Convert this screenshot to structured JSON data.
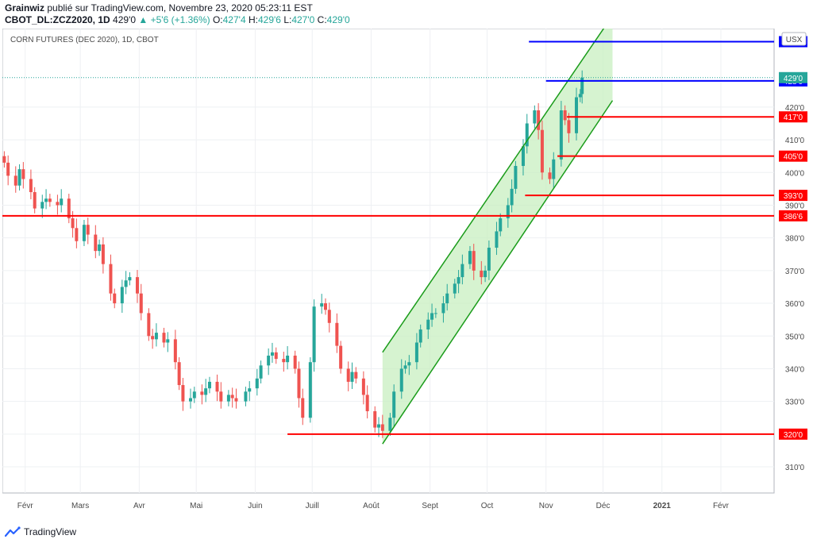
{
  "header": {
    "author": "Grainwiz",
    "published_text": " publié sur TradingView.com, Novembre 23, 2020 05:23:11 EST",
    "symbol": "CBOT_DL:ZCZ2020, 1D",
    "last_price": "429'0",
    "change": "▲ +5'6 (+1.36%)",
    "ohlc": [
      {
        "label": "O:",
        "value": "427'4"
      },
      {
        "label": "H:",
        "value": "429'6"
      },
      {
        "label": "L:",
        "value": "427'0"
      },
      {
        "label": "C:",
        "value": "429'0"
      }
    ]
  },
  "chart_title": "CORN FUTURES (DEC 2020), 1D, CBOT",
  "currency_button": "USX",
  "footer": {
    "brand": "TradingView"
  },
  "colors": {
    "up": "#26a69a",
    "down": "#ef5350",
    "support_line": "#ff0000",
    "resistance_line": "#0000ff",
    "channel_line": "#1a9c1a",
    "channel_fill": "#c8efc0",
    "last_price": "#26a69a",
    "grid": "#eef0f3",
    "axis_text": "#4a4a4a"
  },
  "chart_data": {
    "type": "candlestick",
    "title": "CORN FUTURES (DEC 2020), 1D, CBOT",
    "ylim": [
      302,
      444
    ],
    "y_ticks": [
      "310'0",
      "320'0",
      "330'0",
      "340'0",
      "350'0",
      "360'0",
      "370'0",
      "380'0",
      "390'0",
      "400'0",
      "410'0",
      "420'0"
    ],
    "y_tick_values": [
      310,
      320,
      330,
      340,
      350,
      360,
      370,
      380,
      390,
      400,
      410,
      420
    ],
    "x_axis": {
      "start": "2020-01-20",
      "end": "2021-03-01",
      "months": [
        {
          "label": "Févr",
          "date": "2020-02-01"
        },
        {
          "label": "Mars",
          "date": "2020-03-01"
        },
        {
          "label": "Avr",
          "date": "2020-04-01"
        },
        {
          "label": "Mai",
          "date": "2020-05-01"
        },
        {
          "label": "Juin",
          "date": "2020-06-01"
        },
        {
          "label": "Juill",
          "date": "2020-07-01"
        },
        {
          "label": "Août",
          "date": "2020-08-01"
        },
        {
          "label": "Sept",
          "date": "2020-09-01"
        },
        {
          "label": "Oct",
          "date": "2020-10-01"
        },
        {
          "label": "Nov",
          "date": "2020-11-01"
        },
        {
          "label": "Déc",
          "date": "2020-12-01"
        },
        {
          "label": "2021",
          "date": "2021-01-01",
          "bold": true
        },
        {
          "label": "Févr",
          "date": "2021-02-01"
        }
      ]
    },
    "series": [
      {
        "date": "2020-01-21",
        "close": 403
      },
      {
        "date": "2020-01-23",
        "close": 399
      },
      {
        "date": "2020-01-27",
        "close": 396
      },
      {
        "date": "2020-01-29",
        "close": 401
      },
      {
        "date": "2020-01-31",
        "close": 398
      },
      {
        "date": "2020-02-04",
        "close": 394
      },
      {
        "date": "2020-02-06",
        "close": 389
      },
      {
        "date": "2020-02-10",
        "close": 391
      },
      {
        "date": "2020-02-12",
        "close": 392
      },
      {
        "date": "2020-02-14",
        "close": 391
      },
      {
        "date": "2020-02-18",
        "close": 390
      },
      {
        "date": "2020-02-20",
        "close": 392
      },
      {
        "date": "2020-02-24",
        "close": 386
      },
      {
        "date": "2020-02-26",
        "close": 383
      },
      {
        "date": "2020-02-28",
        "close": 379
      },
      {
        "date": "2020-03-03",
        "close": 384
      },
      {
        "date": "2020-03-05",
        "close": 381
      },
      {
        "date": "2020-03-09",
        "close": 376
      },
      {
        "date": "2020-03-11",
        "close": 378
      },
      {
        "date": "2020-03-13",
        "close": 372
      },
      {
        "date": "2020-03-17",
        "close": 363
      },
      {
        "date": "2020-03-19",
        "close": 360
      },
      {
        "date": "2020-03-23",
        "close": 365
      },
      {
        "date": "2020-03-25",
        "close": 367
      },
      {
        "date": "2020-03-27",
        "close": 368
      },
      {
        "date": "2020-03-31",
        "close": 363
      },
      {
        "date": "2020-04-02",
        "close": 357
      },
      {
        "date": "2020-04-06",
        "close": 350
      },
      {
        "date": "2020-04-08",
        "close": 349
      },
      {
        "date": "2020-04-10",
        "close": 351
      },
      {
        "date": "2020-04-14",
        "close": 348
      },
      {
        "date": "2020-04-16",
        "close": 349
      },
      {
        "date": "2020-04-20",
        "close": 342
      },
      {
        "date": "2020-04-22",
        "close": 335
      },
      {
        "date": "2020-04-24",
        "close": 330
      },
      {
        "date": "2020-04-28",
        "close": 331
      },
      {
        "date": "2020-04-30",
        "close": 333
      },
      {
        "date": "2020-05-04",
        "close": 332
      },
      {
        "date": "2020-05-06",
        "close": 334
      },
      {
        "date": "2020-05-08",
        "close": 336
      },
      {
        "date": "2020-05-12",
        "close": 333
      },
      {
        "date": "2020-05-14",
        "close": 330
      },
      {
        "date": "2020-05-18",
        "close": 332
      },
      {
        "date": "2020-05-20",
        "close": 331
      },
      {
        "date": "2020-05-22",
        "close": 330
      },
      {
        "date": "2020-05-27",
        "close": 333
      },
      {
        "date": "2020-05-29",
        "close": 334
      },
      {
        "date": "2020-06-02",
        "close": 337
      },
      {
        "date": "2020-06-04",
        "close": 341
      },
      {
        "date": "2020-06-08",
        "close": 344
      },
      {
        "date": "2020-06-10",
        "close": 345
      },
      {
        "date": "2020-06-12",
        "close": 343
      },
      {
        "date": "2020-06-16",
        "close": 342
      },
      {
        "date": "2020-06-18",
        "close": 344
      },
      {
        "date": "2020-06-22",
        "close": 340
      },
      {
        "date": "2020-06-24",
        "close": 331
      },
      {
        "date": "2020-06-26",
        "close": 325
      },
      {
        "date": "2020-06-30",
        "close": 342
      },
      {
        "date": "2020-07-02",
        "close": 359
      },
      {
        "date": "2020-07-06",
        "close": 360
      },
      {
        "date": "2020-07-08",
        "close": 358
      },
      {
        "date": "2020-07-10",
        "close": 354
      },
      {
        "date": "2020-07-14",
        "close": 347
      },
      {
        "date": "2020-07-16",
        "close": 340
      },
      {
        "date": "2020-07-20",
        "close": 336
      },
      {
        "date": "2020-07-22",
        "close": 339
      },
      {
        "date": "2020-07-24",
        "close": 337
      },
      {
        "date": "2020-07-28",
        "close": 332
      },
      {
        "date": "2020-07-30",
        "close": 327
      },
      {
        "date": "2020-08-03",
        "close": 322
      },
      {
        "date": "2020-08-05",
        "close": 323
      },
      {
        "date": "2020-08-07",
        "close": 321
      },
      {
        "date": "2020-08-11",
        "close": 325
      },
      {
        "date": "2020-08-13",
        "close": 333
      },
      {
        "date": "2020-08-17",
        "close": 340
      },
      {
        "date": "2020-08-19",
        "close": 341
      },
      {
        "date": "2020-08-21",
        "close": 342
      },
      {
        "date": "2020-08-25",
        "close": 348
      },
      {
        "date": "2020-08-27",
        "close": 352
      },
      {
        "date": "2020-08-31",
        "close": 355
      },
      {
        "date": "2020-09-02",
        "close": 357
      },
      {
        "date": "2020-09-04",
        "close": 357
      },
      {
        "date": "2020-09-08",
        "close": 360
      },
      {
        "date": "2020-09-10",
        "close": 363
      },
      {
        "date": "2020-09-14",
        "close": 366
      },
      {
        "date": "2020-09-16",
        "close": 368
      },
      {
        "date": "2020-09-18",
        "close": 372
      },
      {
        "date": "2020-09-22",
        "close": 376
      },
      {
        "date": "2020-09-24",
        "close": 370
      },
      {
        "date": "2020-09-28",
        "close": 368
      },
      {
        "date": "2020-09-30",
        "close": 370
      },
      {
        "date": "2020-10-02",
        "close": 377
      },
      {
        "date": "2020-10-06",
        "close": 382
      },
      {
        "date": "2020-10-08",
        "close": 386
      },
      {
        "date": "2020-10-12",
        "close": 390
      },
      {
        "date": "2020-10-14",
        "close": 395
      },
      {
        "date": "2020-10-16",
        "close": 402
      },
      {
        "date": "2020-10-20",
        "close": 408
      },
      {
        "date": "2020-10-22",
        "close": 415
      },
      {
        "date": "2020-10-26",
        "close": 419
      },
      {
        "date": "2020-10-28",
        "close": 413
      },
      {
        "date": "2020-10-30",
        "close": 400
      },
      {
        "date": "2020-11-03",
        "close": 398
      },
      {
        "date": "2020-11-05",
        "close": 404
      },
      {
        "date": "2020-11-09",
        "close": 419
      },
      {
        "date": "2020-11-11",
        "close": 416
      },
      {
        "date": "2020-11-13",
        "close": 412
      },
      {
        "date": "2020-11-17",
        "close": 423
      },
      {
        "date": "2020-11-19",
        "close": 424
      },
      {
        "date": "2020-11-20",
        "close": 429
      }
    ],
    "horizontal_levels": [
      {
        "label": "440'0",
        "value": 440,
        "color": "#0000ff",
        "from": "2020-10-23"
      },
      {
        "label": "428'0",
        "value": 428,
        "color": "#0000ff",
        "from": "2020-11-01"
      },
      {
        "label": "417'0",
        "value": 417,
        "color": "#ff0000",
        "from": "2020-11-12"
      },
      {
        "label": "405'0",
        "value": 405,
        "color": "#ff0000",
        "from": "2020-11-07"
      },
      {
        "label": "393'0",
        "value": 393,
        "color": "#ff0000",
        "from": "2020-10-21"
      },
      {
        "label": "386'6",
        "value": 386.75,
        "color": "#ff0000",
        "from": "2020-01-20"
      },
      {
        "label": "320'0",
        "value": 320,
        "color": "#ff0000",
        "from": "2020-06-18"
      }
    ],
    "last_price": {
      "label": "429'0",
      "value": 429
    },
    "channel": {
      "start_date": "2020-08-07",
      "end_date": "2020-12-06",
      "upper": [
        345,
        448
      ],
      "lower": [
        317,
        422
      ]
    }
  }
}
